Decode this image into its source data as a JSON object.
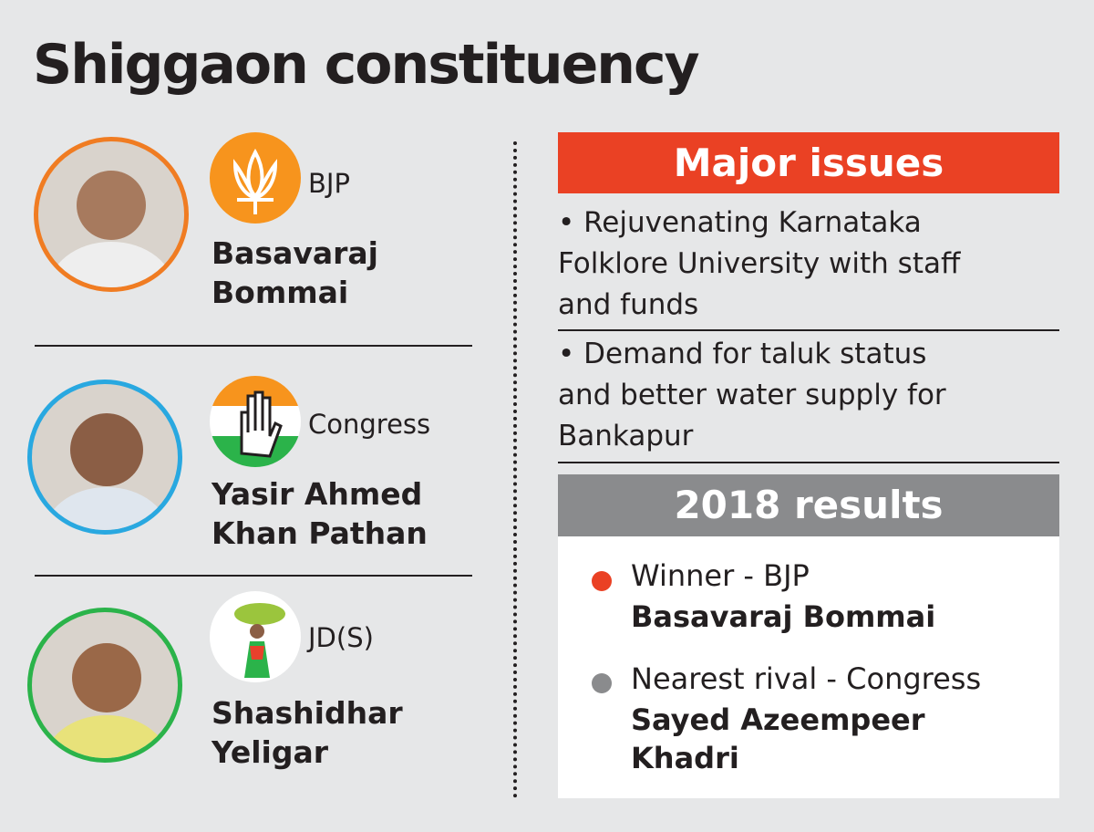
{
  "title": "Shiggaon constituency",
  "candidates": [
    {
      "party": "BJP",
      "name": [
        "Basavaraj",
        "Bommai"
      ]
    },
    {
      "party": "Congress",
      "name": [
        "Yasir Ahmed",
        "Khan Pathan"
      ]
    },
    {
      "party": "JD(S)",
      "name": [
        "Shashidhar",
        "Yeligar"
      ]
    }
  ],
  "issues": {
    "title": "Major issues",
    "items": [
      "• Rejuvenating Karnataka Folklore University with staff and funds",
      "• Demand for taluk status and better water supply for Bankapur"
    ]
  },
  "results": {
    "title": "2018 results",
    "winner": {
      "label": "Winner - BJP",
      "name": "Basavaraj Bommai"
    },
    "rival": {
      "label": "Nearest rival  - Congress",
      "name": "Sayed Azeempeer Khadri"
    }
  }
}
